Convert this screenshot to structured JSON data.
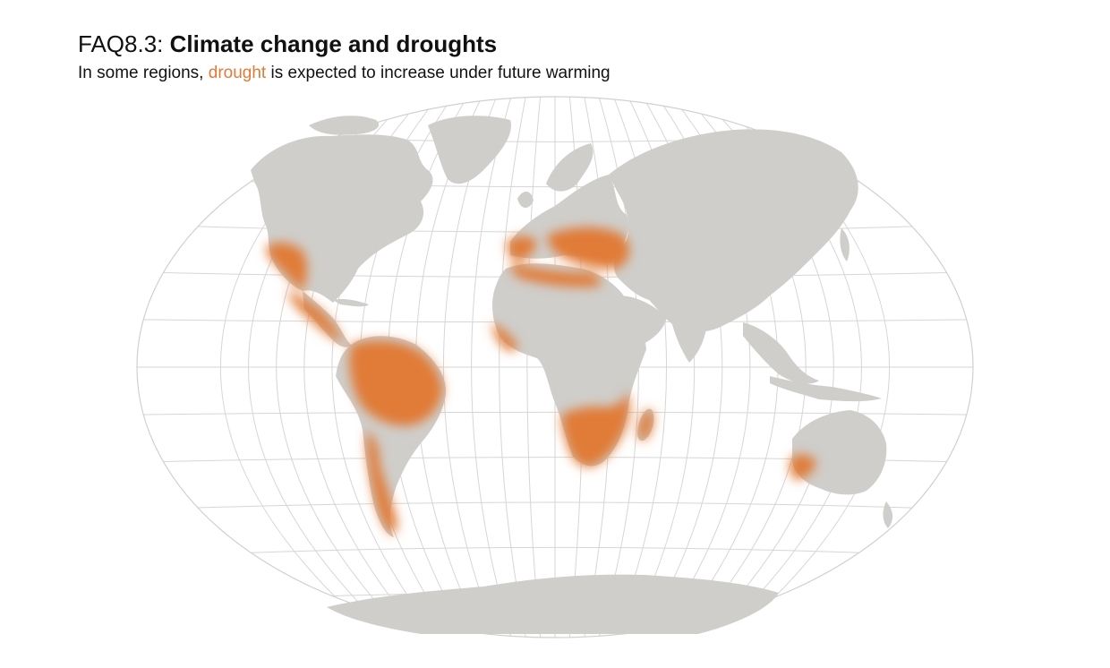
{
  "header": {
    "title_prefix": "FAQ8.3:",
    "title_main": "Climate change and droughts",
    "subtitle_before": "In some regions, ",
    "subtitle_highlight": "drought",
    "subtitle_after": " is expected to increase under future warming"
  },
  "colors": {
    "land": "#cfcecb",
    "drought": "#e07b39",
    "graticule": "#d6d6d6",
    "ocean": "#ffffff"
  },
  "map": {
    "projection": "winkel-tripel-like",
    "drought_regions": [
      "western-us-mexico",
      "central-america",
      "amazon-brazil",
      "southern-andes-chile",
      "mediterranean-iberia",
      "mediterranean-north-africa",
      "turkey-black-sea",
      "west-africa-coast",
      "southern-africa",
      "madagascar",
      "southwest-australia"
    ]
  }
}
